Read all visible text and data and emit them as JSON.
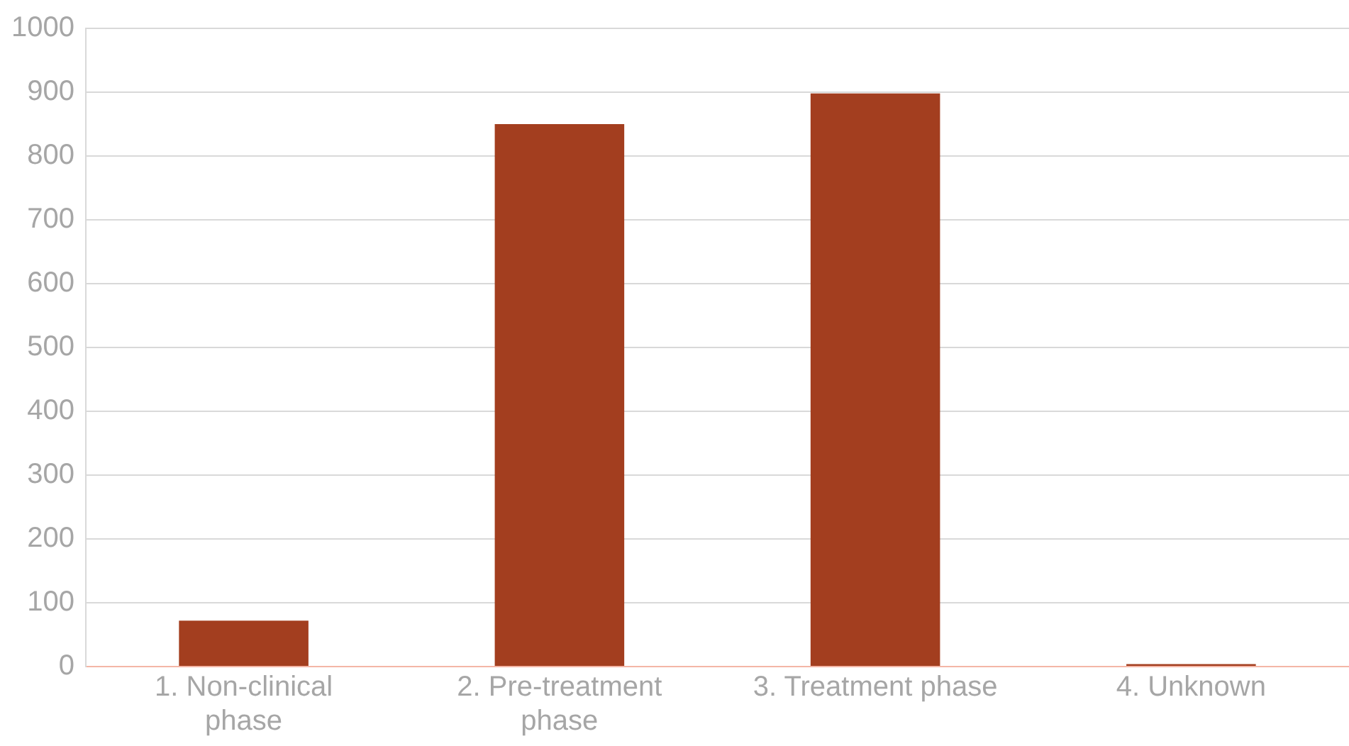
{
  "chart_data": {
    "type": "bar",
    "categories": [
      "1. Non-clinical phase",
      "2. Pre-treatment phase",
      "3. Treatment phase",
      "4. Unknown"
    ],
    "values": [
      72,
      850,
      898,
      4
    ],
    "color": "#a33e1f",
    "ylim": [
      0,
      1000
    ],
    "yticks": [
      0,
      100,
      200,
      300,
      400,
      500,
      600,
      700,
      800,
      900,
      1000
    ],
    "grid": "y"
  }
}
